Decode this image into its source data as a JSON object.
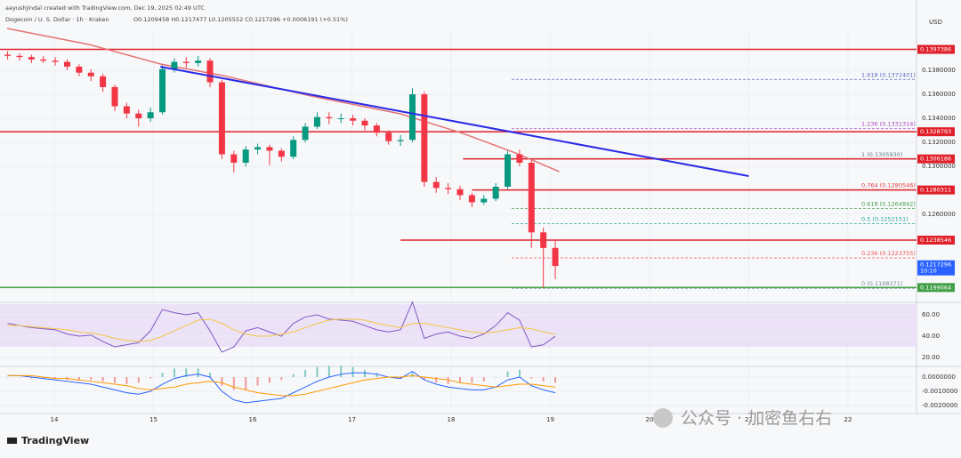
{
  "header": {
    "author": "aayushjindal created with TradingView.com, Dec 19, 2025 02:49 UTC",
    "symbol": "Dogecoin / U. S. Dollar · 1h · Kraken",
    "ohlc": "O0.1209458 H0.1217477 L0.1205552 C0.1217296 +0.0006191 (+0.51%)"
  },
  "axis_unit": "USD",
  "logo": "TradingView",
  "watermark": "公众号 · 加密鱼右右",
  "chart_data": [
    {
      "type": "candlestick",
      "x": [
        13.53,
        13.65,
        13.77,
        13.89,
        14.01,
        14.13,
        14.25,
        14.37,
        14.49,
        14.61,
        14.73,
        14.85,
        14.97,
        15.09,
        15.21,
        15.33,
        15.45,
        15.57,
        15.69,
        15.81,
        15.93,
        16.05,
        16.17,
        16.29,
        16.41,
        16.53,
        16.65,
        16.77,
        16.89,
        17.01,
        17.13,
        17.25,
        17.37,
        17.49,
        17.61,
        17.73,
        17.85,
        17.97,
        18.09,
        18.21,
        18.33,
        18.45,
        18.57,
        18.69,
        18.81,
        18.93,
        19.05
      ],
      "open": [
        0.1393,
        0.1392,
        0.1391,
        0.1389,
        0.1388,
        0.1387,
        0.1383,
        0.1378,
        0.1375,
        0.1366,
        0.135,
        0.1344,
        0.134,
        0.1345,
        0.1381,
        0.1387,
        0.1386,
        0.1388,
        0.137,
        0.131,
        0.1303,
        0.1314,
        0.1316,
        0.1313,
        0.1308,
        0.1322,
        0.1333,
        0.1341,
        0.134,
        0.134,
        0.1338,
        0.1334,
        0.1328,
        0.1321,
        0.1322,
        0.136,
        0.1287,
        0.1282,
        0.1281,
        0.1276,
        0.127,
        0.1273,
        0.1283,
        0.131,
        0.1303,
        0.1245,
        0.1232
      ],
      "high": [
        0.1396,
        0.1394,
        0.1393,
        0.1392,
        0.1391,
        0.1389,
        0.1385,
        0.1381,
        0.1377,
        0.1368,
        0.1353,
        0.1347,
        0.1349,
        0.1384,
        0.139,
        0.1391,
        0.1392,
        0.139,
        0.1372,
        0.1313,
        0.1317,
        0.1319,
        0.1318,
        0.1315,
        0.1325,
        0.1336,
        0.1345,
        0.1345,
        0.1344,
        0.1343,
        0.134,
        0.1336,
        0.133,
        0.1326,
        0.1365,
        0.1362,
        0.1291,
        0.1286,
        0.1284,
        0.1278,
        0.1276,
        0.1286,
        0.1313,
        0.1314,
        0.1305,
        0.1249,
        0.1239
      ],
      "low": [
        0.1389,
        0.1388,
        0.1386,
        0.1386,
        0.1384,
        0.138,
        0.1375,
        0.1371,
        0.1362,
        0.1346,
        0.134,
        0.1333,
        0.1337,
        0.1343,
        0.1378,
        0.1382,
        0.1383,
        0.1366,
        0.1306,
        0.1295,
        0.13,
        0.131,
        0.1301,
        0.1304,
        0.1306,
        0.132,
        0.1331,
        0.1335,
        0.1336,
        0.1334,
        0.133,
        0.1325,
        0.1318,
        0.1317,
        0.132,
        0.1283,
        0.1278,
        0.1277,
        0.1272,
        0.1266,
        0.1268,
        0.1271,
        0.1281,
        0.13,
        0.1232,
        0.1199,
        0.1206
      ],
      "close": [
        0.1392,
        0.1391,
        0.1389,
        0.1388,
        0.1387,
        0.1383,
        0.1378,
        0.1375,
        0.1366,
        0.135,
        0.1344,
        0.134,
        0.1345,
        0.1381,
        0.1387,
        0.1386,
        0.1388,
        0.137,
        0.131,
        0.1303,
        0.1314,
        0.1316,
        0.1313,
        0.1308,
        0.1322,
        0.1333,
        0.1341,
        0.134,
        0.134,
        0.1338,
        0.1334,
        0.1328,
        0.1321,
        0.1322,
        0.136,
        0.1287,
        0.1282,
        0.1281,
        0.1276,
        0.127,
        0.1273,
        0.1283,
        0.131,
        0.1303,
        0.1245,
        0.1232,
        0.1217
      ],
      "up_color": "#089981",
      "down_color": "#f23645",
      "xlim": [
        13.453,
        22.691
      ],
      "xticks": [
        14,
        15,
        16,
        17,
        18,
        19,
        20,
        21,
        22
      ],
      "ylim": [
        0.11867,
        0.14126
      ],
      "yticks": [
        {
          "value": 0.138,
          "label": "0.1380000"
        },
        {
          "value": 0.136,
          "label": "0.1360000"
        },
        {
          "value": 0.134,
          "label": "0.1340000"
        },
        {
          "value": 0.132,
          "label": "0.1320000"
        },
        {
          "value": 0.13,
          "label": "0.1300000"
        },
        {
          "value": 0.126,
          "label": "0.1260000"
        }
      ],
      "moving_average": {
        "color": "#e57373",
        "x": [
          13.525,
          14.35,
          15.07,
          15.7,
          16.59,
          17.49,
          18.12,
          18.65,
          19.09
        ],
        "values": [
          0.14148,
          0.14015,
          0.13852,
          0.13756,
          0.13585,
          0.13437,
          0.13274,
          0.13111,
          0.12956
        ]
      },
      "trendline": {
        "color": "#2a2ae6",
        "x": [
          15.07,
          21.0
        ],
        "values": [
          0.1383,
          0.12919
        ]
      },
      "levels": [
        {
          "value": 0.1397386,
          "color": "#e0202a"
        },
        {
          "value": 0.1328793,
          "color": "#e0202a"
        },
        {
          "value": 0.1306186,
          "color": "#e0202a",
          "from": 18.12
        },
        {
          "value": 0.1280311,
          "color": "#e0202a",
          "from": 18.21
        },
        {
          "value": 0.1238546,
          "color": "#e0202a",
          "from": 17.49
        }
      ],
      "support": {
        "value": 0.1199064,
        "color": "#43a047"
      },
      "last_price": {
        "value": 0.1217296,
        "countdown": "10:10",
        "color": "#2962ff"
      },
      "fib_from": 18.61,
      "fib": [
        {
          "label": "1.618 (0.1372401)",
          "value": 0.1372401,
          "color": "#5c6bc0"
        },
        {
          "label": "1.236 (0.1331314)",
          "value": 0.1331314,
          "color": "#ab47bc"
        },
        {
          "label": "1 (0.1305930)",
          "value": 0.130593,
          "color": "#607d8b"
        },
        {
          "label": "0.764 (0.1280546)",
          "value": 0.1280546,
          "color": "#e53935"
        },
        {
          "label": "0.618 (0.1264842)",
          "value": 0.1264842,
          "color": "#43a047"
        },
        {
          "label": "0.5 (0.1252151)",
          "value": 0.1252151,
          "color": "#26a69a"
        },
        {
          "label": "0.236 (0.1223755)",
          "value": 0.1223755,
          "color": "#ef5350"
        },
        {
          "label": "0 (0.1198371)",
          "value": 0.1198371,
          "color": "#78909c"
        }
      ]
    },
    {
      "type": "line",
      "series": [
        {
          "color": "#7e57c2",
          "values": [
            52,
            50,
            48,
            47,
            46,
            42,
            40,
            41,
            35,
            30,
            32,
            34,
            45,
            65,
            62,
            60,
            62,
            45,
            25,
            30,
            45,
            48,
            44,
            40,
            52,
            58,
            60,
            56,
            55,
            54,
            50,
            46,
            44,
            46,
            72,
            38,
            42,
            44,
            40,
            38,
            42,
            50,
            62,
            55,
            30,
            32,
            40
          ]
        },
        {
          "color": "#f5c542",
          "values": [
            50,
            50,
            49,
            48,
            47,
            46,
            44,
            43,
            41,
            38,
            36,
            35,
            36,
            40,
            45,
            50,
            55,
            56,
            52,
            46,
            42,
            40,
            40,
            42,
            44,
            48,
            52,
            55,
            56,
            56,
            55,
            52,
            50,
            48,
            52,
            52,
            50,
            48,
            46,
            44,
            43,
            44,
            46,
            48,
            47,
            44,
            42
          ]
        }
      ],
      "ylim": [
        11.7,
        71.7
      ],
      "yticks": [
        {
          "value": 20,
          "label": "20.00"
        },
        {
          "value": 40,
          "label": "40.00"
        },
        {
          "value": 60,
          "label": "60.00"
        }
      ],
      "band": [
        30,
        70
      ],
      "band_color": "#ece2f8"
    },
    {
      "type": "macd",
      "histogram": [
        0,
        0,
        -0.0001,
        -0.0001,
        -0.0001,
        -0.0002,
        -0.0002,
        -0.0002,
        -0.0003,
        -0.0004,
        -0.0005,
        -0.0004,
        -0.0001,
        0.0003,
        0.0006,
        0.0006,
        0.0006,
        0.0003,
        -0.0006,
        -0.0009,
        -0.0009,
        -0.0006,
        -0.0004,
        -0.0002,
        0.0002,
        0.0005,
        0.0007,
        0.0008,
        0.0008,
        0.0007,
        0.0005,
        0.0003,
        0,
        -0.0001,
        0.0003,
        -0.0002,
        -0.0004,
        -0.0005,
        -0.0004,
        -0.0004,
        -0.0003,
        0,
        0.0004,
        0.0005,
        -0.0001,
        -0.0003,
        -0.0004
      ],
      "hist_up": "#80cbc4",
      "hist_down": "#ef9a9a",
      "series": [
        {
          "color": "#2962ff",
          "values": [
            0.0001,
            0.0001,
            0,
            -0.0001,
            -0.0002,
            -0.0003,
            -0.0004,
            -0.0005,
            -0.0007,
            -0.0009,
            -0.0011,
            -0.0012,
            -0.001,
            -0.0005,
            -0.0001,
            0.0001,
            0.0002,
            0,
            -0.001,
            -0.0016,
            -0.0018,
            -0.0017,
            -0.0016,
            -0.0015,
            -0.0011,
            -0.0007,
            -0.0003,
            0,
            0.0002,
            0.0003,
            0.0003,
            0.0002,
            0,
            -0.0001,
            0.0004,
            -0.0002,
            -0.0005,
            -0.0007,
            -0.0008,
            -0.0009,
            -0.0009,
            -0.0007,
            -0.0002,
            0,
            -0.0006,
            -0.0009,
            -0.0011
          ]
        },
        {
          "color": "#ff9800",
          "values": [
            0.0001,
            0.0001,
            0.0001,
            0,
            -0.0001,
            -0.0001,
            -0.0002,
            -0.0003,
            -0.0004,
            -0.0005,
            -0.0006,
            -0.0008,
            -0.0009,
            -0.0008,
            -0.0007,
            -0.0005,
            -0.0004,
            -0.0003,
            -0.0004,
            -0.0007,
            -0.0009,
            -0.0011,
            -0.0012,
            -0.0013,
            -0.0013,
            -0.0012,
            -0.001,
            -0.0008,
            -0.0006,
            -0.0004,
            -0.0002,
            -0.0001,
            0,
            0,
            0.0001,
            0,
            -0.0001,
            -0.0002,
            -0.0004,
            -0.0005,
            -0.0006,
            -0.0007,
            -0.0006,
            -0.0005,
            -0.0005,
            -0.0006,
            -0.0007
          ]
        }
      ],
      "ylim": [
        -0.00256,
        0.00075
      ],
      "yticks": [
        {
          "value": 0,
          "label": "0.0000000"
        },
        {
          "value": -0.001,
          "label": "-0.0010000"
        },
        {
          "value": -0.002,
          "label": "-0.0020000"
        }
      ]
    }
  ]
}
